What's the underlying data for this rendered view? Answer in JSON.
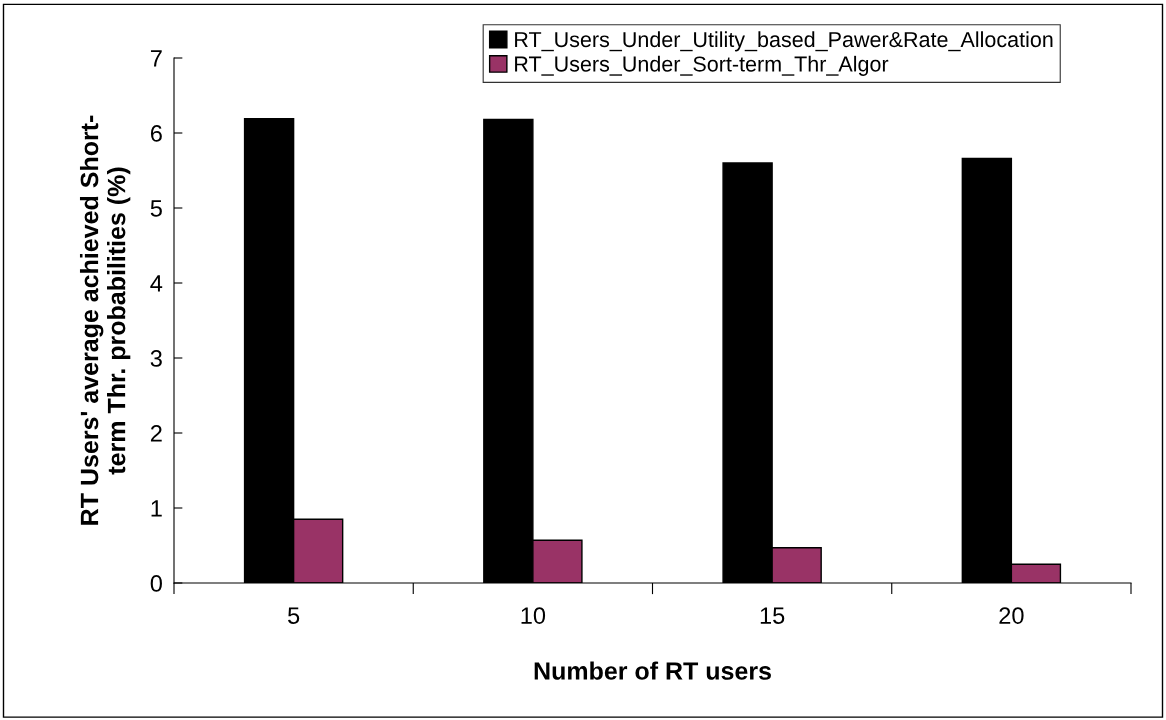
{
  "chart_data": {
    "type": "bar",
    "xlabel": "Number of RT users",
    "ylabel": "RT Users' average achieved Short-\nterm Thr. probabilities (%)",
    "categories": [
      "5",
      "10",
      "15",
      "20"
    ],
    "series": [
      {
        "name": "RT_Users_Under_Utility_based_Pawer&Rate_Allocation",
        "color": "#000000",
        "values": [
          6.19,
          6.18,
          5.6,
          5.66
        ]
      },
      {
        "name": "RT_Users_Under_Sort-term_Thr_Algor",
        "color": "#993366",
        "values": [
          0.85,
          0.57,
          0.47,
          0.25
        ]
      }
    ],
    "ylim": [
      0,
      7
    ],
    "yticks": [
      0,
      1,
      2,
      3,
      4,
      5,
      6,
      7
    ],
    "grid": false,
    "legend": "top right"
  }
}
